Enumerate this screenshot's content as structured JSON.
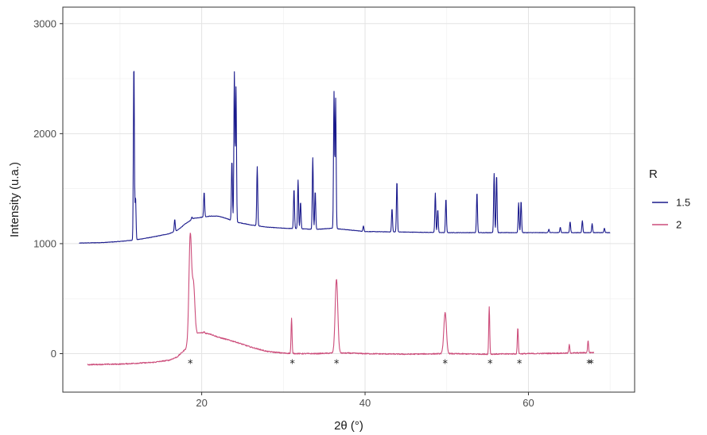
{
  "chart_data": {
    "type": "line",
    "title": "",
    "xlabel": "2θ (°)",
    "ylabel": "Intensity (u.a.)",
    "xlim": [
      3,
      73
    ],
    "ylim": [
      -350,
      3150
    ],
    "x_ticks": [
      20,
      40,
      60
    ],
    "y_ticks": [
      0,
      1000,
      2000,
      3000
    ],
    "x_tick_labels": [
      "20",
      "40",
      "60"
    ],
    "y_tick_labels": [
      "0",
      "1000",
      "2000",
      "3000"
    ],
    "grid": true,
    "legend": {
      "title": "R",
      "placement": "right"
    },
    "series": [
      {
        "name": "1.5",
        "color": "#1a1a8c",
        "x_range": [
          5,
          70
        ],
        "baseline": [
          [
            5,
            1005
          ],
          [
            8,
            1010
          ],
          [
            10,
            1020
          ],
          [
            12,
            1035
          ],
          [
            14,
            1060
          ],
          [
            16,
            1090
          ],
          [
            17,
            1120
          ],
          [
            18,
            1180
          ],
          [
            19,
            1230
          ],
          [
            20,
            1240
          ],
          [
            21,
            1250
          ],
          [
            22,
            1250
          ],
          [
            23,
            1230
          ],
          [
            24,
            1200
          ],
          [
            26,
            1170
          ],
          [
            28,
            1150
          ],
          [
            30,
            1140
          ],
          [
            32,
            1135
          ],
          [
            34,
            1130
          ],
          [
            36,
            1140
          ],
          [
            38,
            1125
          ],
          [
            40,
            1110
          ],
          [
            45,
            1105
          ],
          [
            50,
            1100
          ],
          [
            55,
            1100
          ],
          [
            60,
            1100
          ],
          [
            65,
            1100
          ],
          [
            70,
            1100
          ]
        ],
        "peaks": [
          [
            11.7,
            2650
          ],
          [
            11.9,
            1420
          ],
          [
            16.7,
            1220
          ],
          [
            18.8,
            1240
          ],
          [
            20.3,
            1470
          ],
          [
            23.7,
            1760
          ],
          [
            24.0,
            2560
          ],
          [
            24.2,
            2420
          ],
          [
            26.8,
            1700
          ],
          [
            31.3,
            1500
          ],
          [
            31.8,
            1580
          ],
          [
            32.1,
            1380
          ],
          [
            33.6,
            1780
          ],
          [
            33.9,
            1480
          ],
          [
            36.2,
            2380
          ],
          [
            36.4,
            2320
          ],
          [
            39.8,
            1160
          ],
          [
            43.3,
            1320
          ],
          [
            43.9,
            1570
          ],
          [
            48.6,
            1460
          ],
          [
            48.9,
            1310
          ],
          [
            49.9,
            1410
          ],
          [
            53.7,
            1470
          ],
          [
            55.8,
            1640
          ],
          [
            56.1,
            1630
          ],
          [
            58.8,
            1370
          ],
          [
            59.1,
            1390
          ],
          [
            62.5,
            1130
          ],
          [
            63.9,
            1150
          ],
          [
            65.1,
            1200
          ],
          [
            66.6,
            1210
          ],
          [
            67.8,
            1180
          ],
          [
            69.3,
            1140
          ]
        ]
      },
      {
        "name": "2",
        "color": "#cc4c7a",
        "x_range": [
          6,
          68
        ],
        "baseline": [
          [
            6,
            -100
          ],
          [
            10,
            -95
          ],
          [
            14,
            -80
          ],
          [
            16,
            -60
          ],
          [
            17,
            -30
          ],
          [
            18,
            40
          ],
          [
            19,
            180
          ],
          [
            20,
            190
          ],
          [
            21,
            180
          ],
          [
            22,
            150
          ],
          [
            24,
            110
          ],
          [
            26,
            60
          ],
          [
            28,
            20
          ],
          [
            30,
            5
          ],
          [
            32,
            0
          ],
          [
            34,
            0
          ],
          [
            36,
            5
          ],
          [
            38,
            5
          ],
          [
            40,
            0
          ],
          [
            45,
            -5
          ],
          [
            50,
            0
          ],
          [
            55,
            -5
          ],
          [
            60,
            0
          ],
          [
            65,
            5
          ],
          [
            68,
            10
          ]
        ],
        "peaks": [
          [
            18.6,
            1080
          ],
          [
            19.0,
            620
          ],
          [
            20.3,
            200
          ],
          [
            31.0,
            320
          ],
          [
            36.5,
            680
          ],
          [
            49.8,
            370
          ],
          [
            55.2,
            430
          ],
          [
            58.7,
            240
          ],
          [
            65.0,
            80
          ],
          [
            67.3,
            120
          ]
        ]
      }
    ],
    "markers": {
      "symbol": "*",
      "y": -80,
      "x": [
        18.6,
        31.1,
        36.5,
        49.8,
        55.3,
        58.9,
        67.4,
        67.7
      ]
    }
  }
}
